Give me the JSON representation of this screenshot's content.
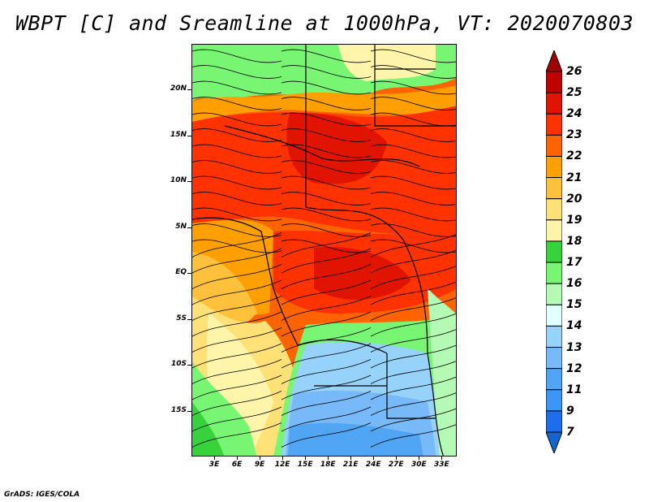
{
  "title": "WBPT [C] and Sreamline at 1000hPa, VT: 2020070803",
  "footer": "GrADS: IGES/COLA",
  "map": {
    "lat_range": [
      -20,
      25
    ],
    "lon_range": [
      0,
      35
    ],
    "lat_labels": [
      {
        "lat": 20,
        "label": "20N"
      },
      {
        "lat": 15,
        "label": "15N"
      },
      {
        "lat": 10,
        "label": "10N"
      },
      {
        "lat": 5,
        "label": "5N"
      },
      {
        "lat": 0,
        "label": "EQ"
      },
      {
        "lat": -5,
        "label": "5S"
      },
      {
        "lat": -10,
        "label": "10S"
      },
      {
        "lat": -15,
        "label": "15S"
      }
    ],
    "lon_labels": [
      {
        "lon": 3,
        "label": "3E"
      },
      {
        "lon": 6,
        "label": "6E"
      },
      {
        "lon": 9,
        "label": "9E"
      },
      {
        "lon": 12,
        "label": "12E"
      },
      {
        "lon": 15,
        "label": "15E"
      },
      {
        "lon": 18,
        "label": "18E"
      },
      {
        "lon": 21,
        "label": "21E"
      },
      {
        "lon": 24,
        "label": "24E"
      },
      {
        "lon": 27,
        "label": "27E"
      },
      {
        "lon": 30,
        "label": "30E"
      },
      {
        "lon": 33,
        "label": "33E"
      }
    ]
  },
  "colorbar": {
    "top_arrow_color": "#a00000",
    "bottom_arrow_color": "#1464d2",
    "bins": [
      {
        "color": "#c00000"
      },
      {
        "color": "#e01400"
      },
      {
        "color": "#ff3200"
      },
      {
        "color": "#ff6400"
      },
      {
        "color": "#ffa000"
      },
      {
        "color": "#ffc03c"
      },
      {
        "color": "#ffe178"
      },
      {
        "color": "#fff5aa"
      },
      {
        "color": "#37d23c"
      },
      {
        "color": "#78f573"
      },
      {
        "color": "#b4fab4"
      },
      {
        "color": "#e1ffff"
      },
      {
        "color": "#96d2fa"
      },
      {
        "color": "#78b9fa"
      },
      {
        "color": "#50a5f5"
      },
      {
        "color": "#3c96f5"
      },
      {
        "color": "#1e6eeb"
      }
    ],
    "labels": [
      "26",
      "25",
      "24",
      "23",
      "22",
      "21",
      "20",
      "19",
      "18",
      "17",
      "16",
      "15",
      "14",
      "13",
      "12",
      "11",
      "9",
      "7"
    ]
  }
}
